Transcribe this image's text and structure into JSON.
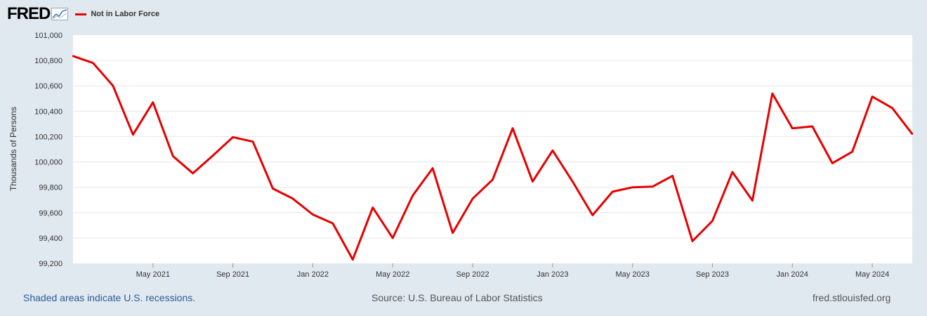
{
  "header": {
    "logo_text": "FRED",
    "logo_icon": "line-graph-icon",
    "series_name": "Not in Labor Force"
  },
  "footer": {
    "recession_note": "Shaded areas indicate U.S. recessions.",
    "source": "Source: U.S. Bureau of Labor Statistics",
    "site": "fred.stlouisfed.org"
  },
  "colors": {
    "background": "#e1e9f0",
    "plot_background": "#ffffff",
    "series": "#e60000",
    "gridline": "#e6e6e6",
    "link": "#2a5b93"
  },
  "chart_data": {
    "type": "line",
    "title": "",
    "xlabel": "",
    "ylabel": "Thousands of Persons",
    "ylim": [
      99200,
      101000
    ],
    "yticks": [
      "101,000",
      "100,800",
      "100,600",
      "100,400",
      "100,200",
      "100,000",
      "99,800",
      "99,600",
      "99,400",
      "99,200"
    ],
    "ytick_values": [
      101000,
      100800,
      100600,
      100400,
      100200,
      100000,
      99800,
      99600,
      99400,
      99200
    ],
    "xticks": [
      "May 2021",
      "Sep 2021",
      "Jan 2022",
      "May 2022",
      "Sep 2022",
      "Jan 2023",
      "May 2023",
      "Sep 2023",
      "Jan 2024",
      "May 2024"
    ],
    "xtick_dates": [
      "2021-05",
      "2021-09",
      "2022-01",
      "2022-05",
      "2022-09",
      "2023-01",
      "2023-05",
      "2023-09",
      "2024-01",
      "2024-05"
    ],
    "grid": true,
    "legend": "top-left",
    "series": [
      {
        "name": "Not in Labor Force",
        "color": "#e60000",
        "x": [
          "2021-01",
          "2021-02",
          "2021-03",
          "2021-04",
          "2021-05",
          "2021-06",
          "2021-07",
          "2021-08",
          "2021-09",
          "2021-10",
          "2021-11",
          "2021-12",
          "2022-01",
          "2022-02",
          "2022-03",
          "2022-04",
          "2022-05",
          "2022-06",
          "2022-07",
          "2022-08",
          "2022-09",
          "2022-10",
          "2022-11",
          "2022-12",
          "2023-01",
          "2023-02",
          "2023-03",
          "2023-04",
          "2023-05",
          "2023-06",
          "2023-07",
          "2023-08",
          "2023-09",
          "2023-10",
          "2023-11",
          "2023-12",
          "2024-01",
          "2024-02",
          "2024-03",
          "2024-04",
          "2024-05",
          "2024-06",
          "2024-07"
        ],
        "values": [
          100835,
          100780,
          100600,
          100215,
          100470,
          100045,
          99910,
          100050,
          100195,
          100160,
          99790,
          99710,
          99585,
          99515,
          99230,
          99640,
          99400,
          99735,
          99950,
          99440,
          99710,
          99860,
          100265,
          99845,
          100090,
          99845,
          99580,
          99765,
          99800,
          99805,
          99890,
          99375,
          99535,
          99920,
          99695,
          100540,
          100265,
          100280,
          99990,
          100080,
          100515,
          100425,
          100220
        ]
      }
    ]
  }
}
